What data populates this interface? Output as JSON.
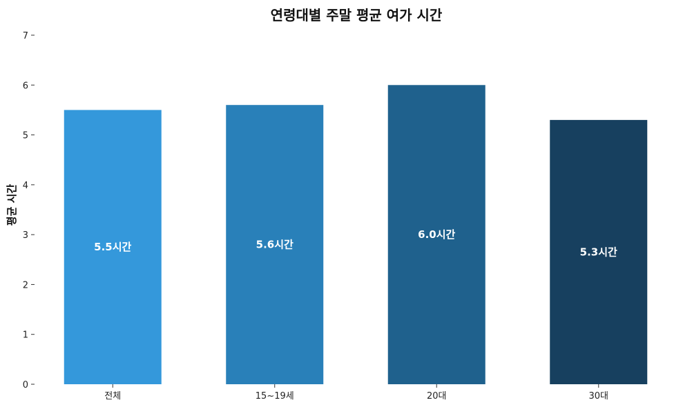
{
  "chart_data": {
    "type": "bar",
    "title": "연령대별 주말 평균 여가 시간",
    "xlabel": "",
    "ylabel": "평균 시간",
    "categories": [
      "전체",
      "15~19세",
      "20대",
      "30대"
    ],
    "values": [
      5.5,
      5.6,
      6.0,
      5.3
    ],
    "data_labels": [
      "5.5시간",
      "5.6시간",
      "6.0시간",
      "5.3시간"
    ],
    "colors": [
      "#3498db",
      "#2980b9",
      "#1f618d",
      "#17405f"
    ],
    "ylim": [
      0,
      7
    ],
    "yticks": [
      "0",
      "1",
      "2",
      "3",
      "4",
      "5",
      "6",
      "7"
    ],
    "grid": false,
    "legend": "none"
  }
}
